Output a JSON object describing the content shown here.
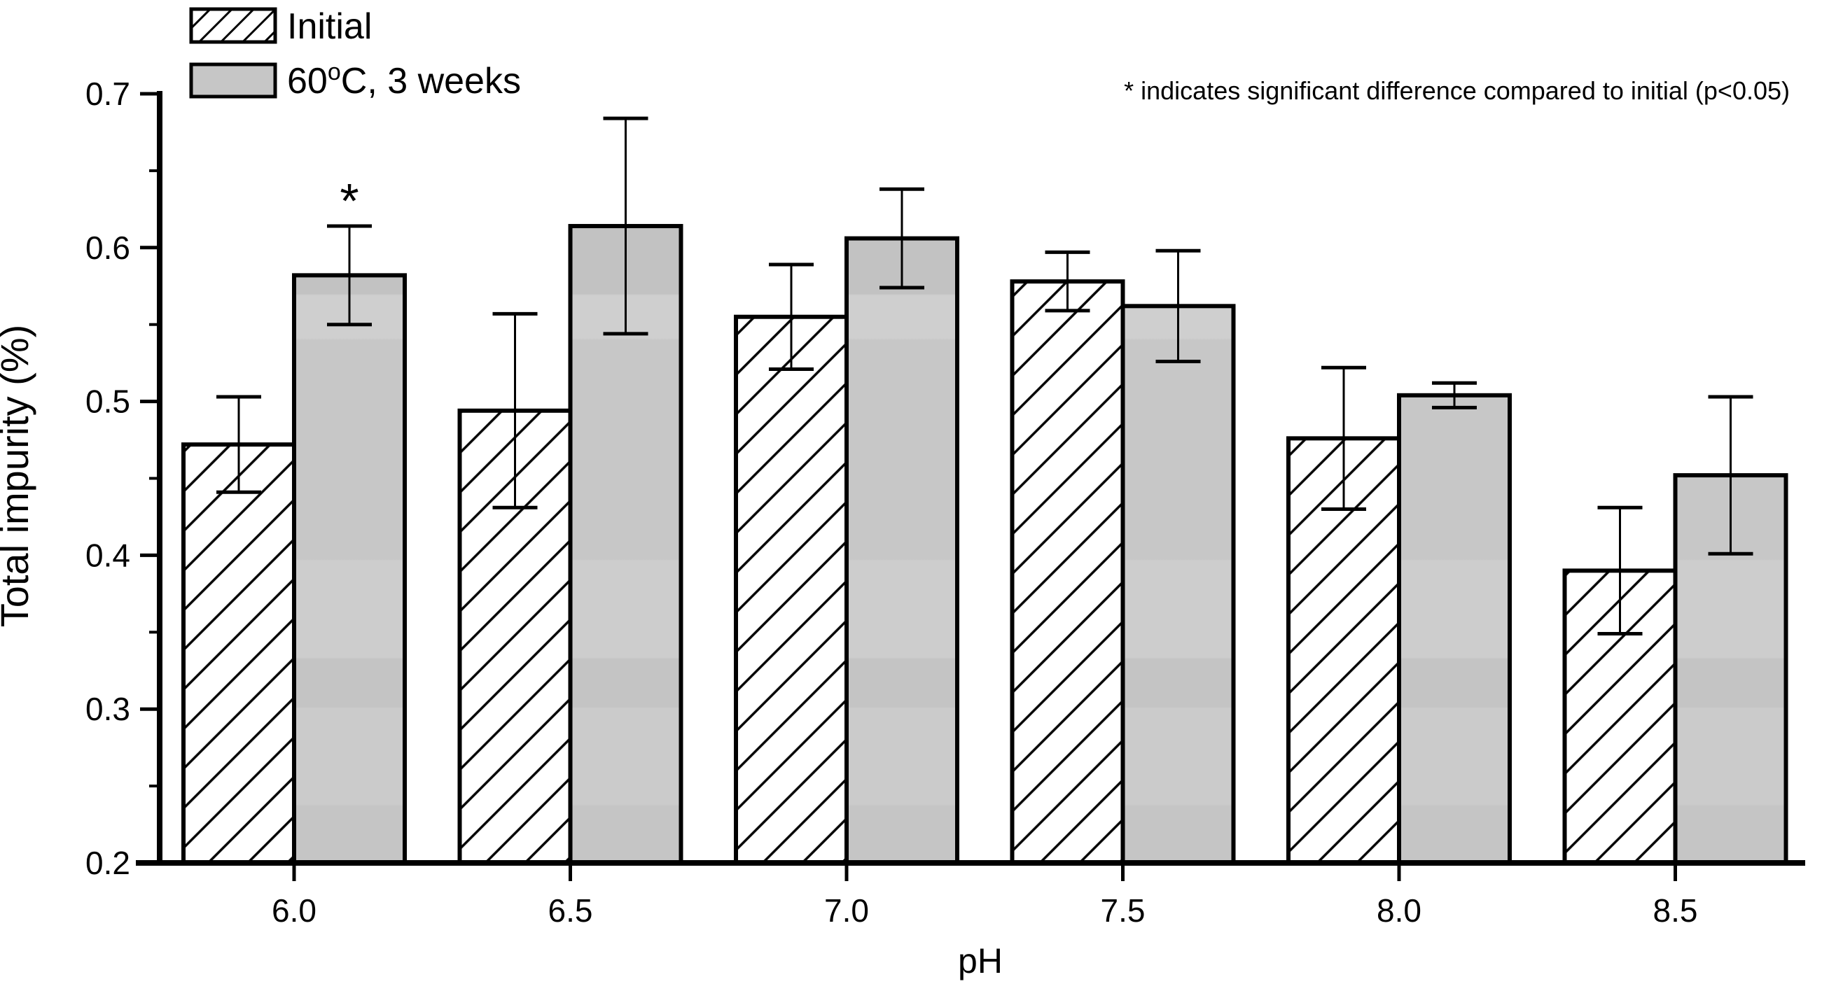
{
  "chart_data": {
    "type": "bar",
    "title": "",
    "xlabel": "pH",
    "ylabel": "Total impurity (%)",
    "ylim": [
      0.2,
      0.7
    ],
    "ytick_step": 0.1,
    "ytick_minor_step": 0.05,
    "ytick_labels": [
      "0.2",
      "0.3",
      "0.4",
      "0.5",
      "0.6",
      "0.7"
    ],
    "grid": false,
    "legend_position": "top-left",
    "categories": [
      "6.0",
      "6.5",
      "7.0",
      "7.5",
      "8.0",
      "8.5"
    ],
    "series": [
      {
        "name": "Initial",
        "style": "hatched",
        "values": [
          0.472,
          0.494,
          0.555,
          0.578,
          0.476,
          0.39
        ],
        "errors": [
          0.031,
          0.063,
          0.034,
          0.019,
          0.046,
          0.041
        ]
      },
      {
        "name": "60°C, 3 weeks",
        "style": "gray",
        "values": [
          0.582,
          0.614,
          0.606,
          0.562,
          0.504,
          0.452
        ],
        "errors": [
          0.032,
          0.07,
          0.032,
          0.036,
          0.008,
          0.051
        ]
      }
    ],
    "significance": {
      "symbol": "*",
      "series_index": 1,
      "category_index": 0
    },
    "annotation": "* indicates significant difference compared to initial (p<0.05)"
  },
  "legend": {
    "items": [
      {
        "label": "Initial"
      },
      {
        "label_pre": "60",
        "label_sup": "o",
        "label_post": "C, 3 weeks"
      }
    ]
  },
  "colors": {
    "bar_gray": "#c6c6c6",
    "stroke": "#000000",
    "background": "#ffffff"
  }
}
